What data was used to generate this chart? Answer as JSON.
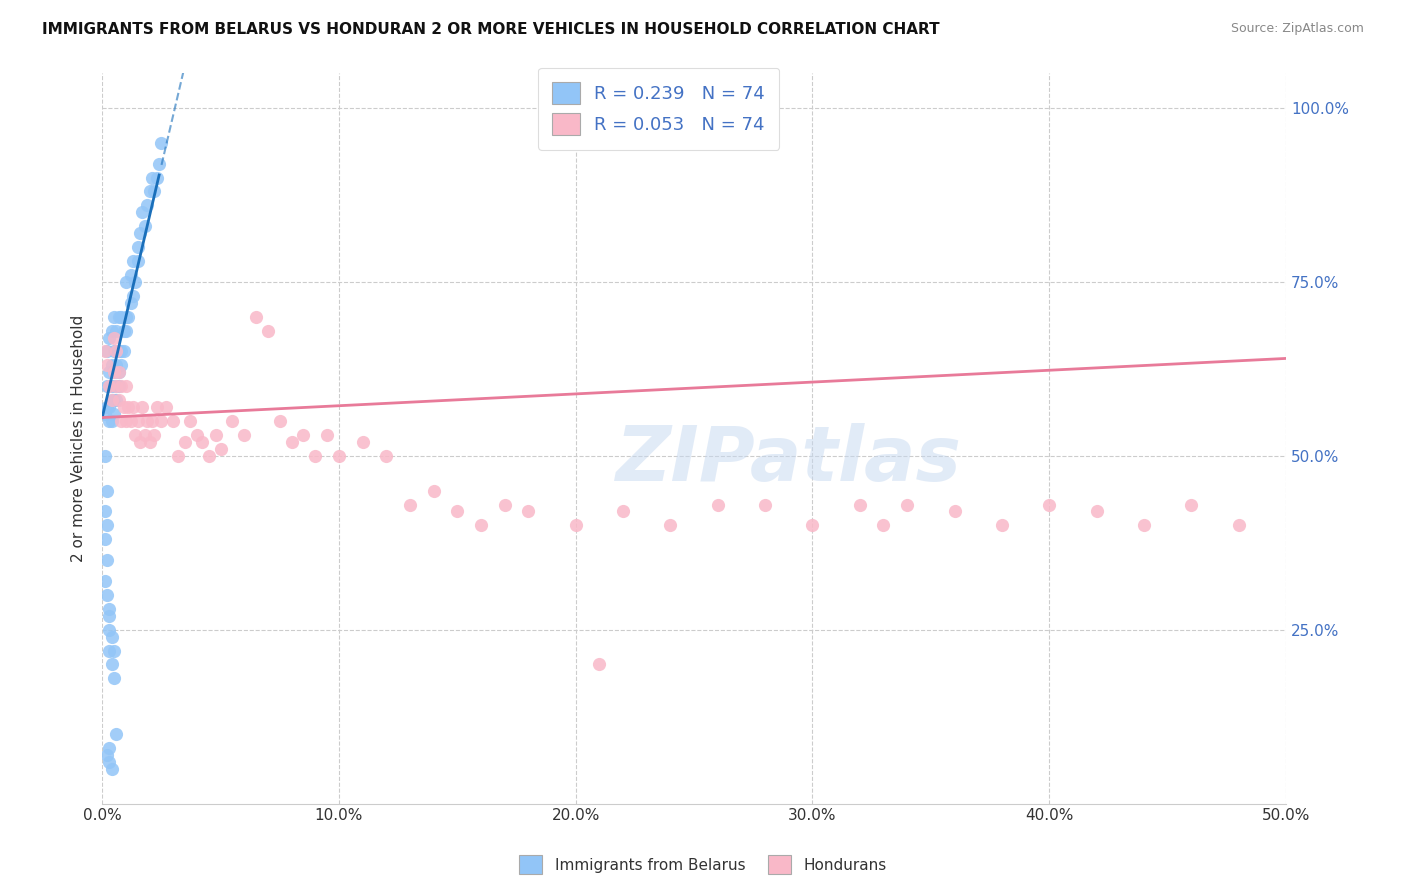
{
  "title": "IMMIGRANTS FROM BELARUS VS HONDURAN 2 OR MORE VEHICLES IN HOUSEHOLD CORRELATION CHART",
  "source": "Source: ZipAtlas.com",
  "ylabel": "2 or more Vehicles in Household",
  "xlim": [
    0.0,
    0.5
  ],
  "ylim": [
    0.0,
    1.05
  ],
  "xtick_labels": [
    "0.0%",
    "10.0%",
    "20.0%",
    "30.0%",
    "40.0%",
    "50.0%"
  ],
  "xtick_vals": [
    0.0,
    0.1,
    0.2,
    0.3,
    0.4,
    0.5
  ],
  "ytick_labels": [
    "25.0%",
    "50.0%",
    "75.0%",
    "100.0%"
  ],
  "ytick_vals": [
    0.25,
    0.5,
    0.75,
    1.0
  ],
  "R_blue": 0.239,
  "N_blue": 74,
  "R_pink": 0.053,
  "N_pink": 74,
  "blue_color": "#92C5F7",
  "pink_color": "#F9B8C8",
  "blue_line_color": "#1A6FBA",
  "pink_line_color": "#E87A99",
  "legend_label_blue": "Immigrants from Belarus",
  "legend_label_pink": "Hondurans",
  "watermark": "ZIPatlas",
  "blue_line_x0": 0.0,
  "blue_line_y0": 0.555,
  "blue_line_slope": 14.5,
  "pink_line_x0": 0.0,
  "pink_line_y0": 0.555,
  "pink_line_slope": 0.17,
  "blue_scatter_x": [
    0.001,
    0.002,
    0.002,
    0.002,
    0.003,
    0.003,
    0.003,
    0.003,
    0.003,
    0.004,
    0.004,
    0.004,
    0.004,
    0.004,
    0.005,
    0.005,
    0.005,
    0.005,
    0.005,
    0.006,
    0.006,
    0.006,
    0.006,
    0.007,
    0.007,
    0.007,
    0.007,
    0.008,
    0.008,
    0.008,
    0.009,
    0.009,
    0.01,
    0.01,
    0.01,
    0.011,
    0.012,
    0.012,
    0.013,
    0.013,
    0.014,
    0.015,
    0.015,
    0.016,
    0.017,
    0.018,
    0.019,
    0.02,
    0.021,
    0.022,
    0.023,
    0.024,
    0.025,
    0.001,
    0.001,
    0.002,
    0.002,
    0.002,
    0.003,
    0.003,
    0.003,
    0.003,
    0.004,
    0.004,
    0.005,
    0.005,
    0.006,
    0.002,
    0.003,
    0.003,
    0.004,
    0.001,
    0.002,
    0.001
  ],
  "blue_scatter_y": [
    0.56,
    0.57,
    0.6,
    0.65,
    0.55,
    0.57,
    0.6,
    0.62,
    0.67,
    0.55,
    0.58,
    0.6,
    0.63,
    0.68,
    0.56,
    0.58,
    0.62,
    0.65,
    0.7,
    0.58,
    0.6,
    0.63,
    0.68,
    0.6,
    0.62,
    0.65,
    0.7,
    0.63,
    0.65,
    0.7,
    0.65,
    0.68,
    0.68,
    0.7,
    0.75,
    0.7,
    0.72,
    0.76,
    0.73,
    0.78,
    0.75,
    0.78,
    0.8,
    0.82,
    0.85,
    0.83,
    0.86,
    0.88,
    0.9,
    0.88,
    0.9,
    0.92,
    0.95,
    0.32,
    0.38,
    0.3,
    0.35,
    0.4,
    0.25,
    0.28,
    0.22,
    0.27,
    0.2,
    0.24,
    0.18,
    0.22,
    0.1,
    0.07,
    0.06,
    0.08,
    0.05,
    0.42,
    0.45,
    0.5
  ],
  "pink_scatter_x": [
    0.001,
    0.002,
    0.003,
    0.004,
    0.005,
    0.005,
    0.006,
    0.006,
    0.007,
    0.007,
    0.008,
    0.008,
    0.009,
    0.01,
    0.01,
    0.011,
    0.012,
    0.013,
    0.014,
    0.015,
    0.016,
    0.017,
    0.018,
    0.019,
    0.02,
    0.021,
    0.022,
    0.023,
    0.025,
    0.027,
    0.03,
    0.032,
    0.035,
    0.037,
    0.04,
    0.042,
    0.045,
    0.048,
    0.05,
    0.055,
    0.06,
    0.065,
    0.07,
    0.075,
    0.08,
    0.085,
    0.09,
    0.095,
    0.1,
    0.11,
    0.12,
    0.13,
    0.14,
    0.15,
    0.16,
    0.17,
    0.18,
    0.2,
    0.22,
    0.24,
    0.26,
    0.28,
    0.3,
    0.32,
    0.34,
    0.36,
    0.38,
    0.4,
    0.42,
    0.44,
    0.46,
    0.48,
    0.21,
    0.33
  ],
  "pink_scatter_y": [
    0.65,
    0.63,
    0.6,
    0.58,
    0.62,
    0.67,
    0.6,
    0.65,
    0.58,
    0.62,
    0.55,
    0.6,
    0.57,
    0.55,
    0.6,
    0.57,
    0.55,
    0.57,
    0.53,
    0.55,
    0.52,
    0.57,
    0.53,
    0.55,
    0.52,
    0.55,
    0.53,
    0.57,
    0.55,
    0.57,
    0.55,
    0.5,
    0.52,
    0.55,
    0.53,
    0.52,
    0.5,
    0.53,
    0.51,
    0.55,
    0.53,
    0.7,
    0.68,
    0.55,
    0.52,
    0.53,
    0.5,
    0.53,
    0.5,
    0.52,
    0.5,
    0.43,
    0.45,
    0.42,
    0.4,
    0.43,
    0.42,
    0.4,
    0.42,
    0.4,
    0.43,
    0.43,
    0.4,
    0.43,
    0.43,
    0.42,
    0.4,
    0.43,
    0.42,
    0.4,
    0.43,
    0.4,
    0.2,
    0.4
  ]
}
